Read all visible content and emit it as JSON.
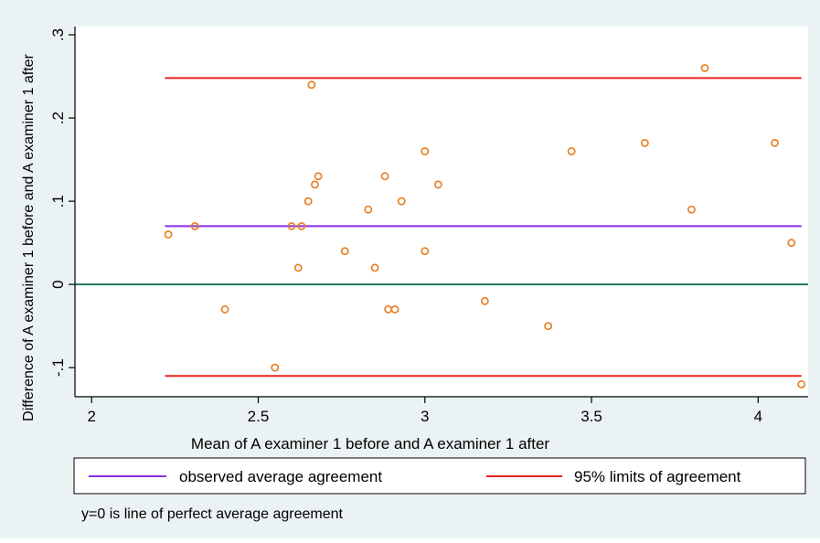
{
  "colors": {
    "outer_background": "#eaf2f3",
    "plot_background": "#ffffff",
    "mean_line": "#8a2be2",
    "limit_lines": "#e8231f",
    "zero_line": "#1f7a5c",
    "markers": "#e87b1c"
  },
  "footnote": "y=0 is line of perfect average agreement",
  "legend": {
    "position": "bottom",
    "items": [
      {
        "label": "observed average agreement",
        "color": "#8a2be2"
      },
      {
        "label": "95% limits of agreement",
        "color": "#e8231f"
      }
    ]
  },
  "chart_data": {
    "type": "scatter",
    "title": "",
    "xlabel": "Mean of A examiner 1 before and A examiner 1 after",
    "ylabel": "Difference of A examiner 1 before and A examiner 1 after",
    "xlim": [
      1.95,
      4.15
    ],
    "ylim": [
      -0.135,
      0.31
    ],
    "xticks": [
      2,
      2.5,
      3,
      3.5,
      4
    ],
    "xtick_labels": [
      "2",
      "2.5",
      "3",
      "3.5",
      "4"
    ],
    "yticks": [
      -0.1,
      0,
      0.1,
      0.2,
      0.3
    ],
    "ytick_labels": [
      "-.1",
      "0",
      ".1",
      ".2",
      ".3"
    ],
    "grid": false,
    "reference_lines": [
      {
        "name": "observed average agreement",
        "y": 0.07,
        "x_range": [
          2.22,
          4.13
        ],
        "color": "#8a2be2"
      },
      {
        "name": "95% upper limit of agreement",
        "y": 0.248,
        "x_range": [
          2.22,
          4.13
        ],
        "color": "#e8231f"
      },
      {
        "name": "95% lower limit of agreement",
        "y": -0.11,
        "x_range": [
          2.22,
          4.13
        ],
        "color": "#e8231f"
      },
      {
        "name": "perfect average agreement",
        "y": 0,
        "x_range": [
          1.95,
          4.15
        ],
        "color": "#1f7a5c"
      }
    ],
    "points": [
      [
        2.23,
        0.06
      ],
      [
        2.31,
        0.07
      ],
      [
        2.4,
        -0.03
      ],
      [
        2.55,
        -0.1
      ],
      [
        2.6,
        0.07
      ],
      [
        2.62,
        0.02
      ],
      [
        2.63,
        0.07
      ],
      [
        2.65,
        0.1
      ],
      [
        2.66,
        0.24
      ],
      [
        2.67,
        0.12
      ],
      [
        2.68,
        0.13
      ],
      [
        2.76,
        0.04
      ],
      [
        2.83,
        0.09
      ],
      [
        2.85,
        0.02
      ],
      [
        2.88,
        0.13
      ],
      [
        2.89,
        -0.03
      ],
      [
        2.91,
        -0.03
      ],
      [
        2.93,
        0.1
      ],
      [
        3.0,
        0.16
      ],
      [
        3.0,
        0.04
      ],
      [
        3.04,
        0.12
      ],
      [
        3.18,
        -0.02
      ],
      [
        3.37,
        -0.05
      ],
      [
        3.44,
        0.16
      ],
      [
        3.66,
        0.17
      ],
      [
        3.8,
        0.09
      ],
      [
        3.84,
        0.26
      ],
      [
        4.05,
        0.17
      ],
      [
        4.1,
        0.05
      ],
      [
        4.13,
        -0.12
      ]
    ]
  }
}
